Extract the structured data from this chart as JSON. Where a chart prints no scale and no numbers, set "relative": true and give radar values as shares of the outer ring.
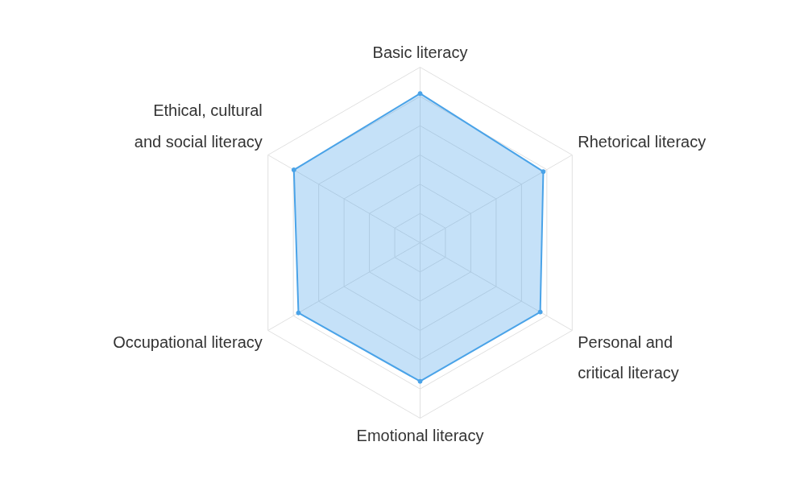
{
  "chart_data": {
    "type": "radar",
    "relative": true,
    "categories": [
      "Basic literacy",
      "Rhetorical literacy",
      "Personal and critical literacy",
      "Emotional literacy",
      "Occupational literacy",
      "Ethical, cultural and social literacy"
    ],
    "series": [
      {
        "color": "#4aa3e8",
        "values": [
          0.85,
          0.81,
          0.79,
          0.79,
          0.8,
          0.83
        ]
      }
    ],
    "grid": true,
    "marker": "circle"
  }
}
